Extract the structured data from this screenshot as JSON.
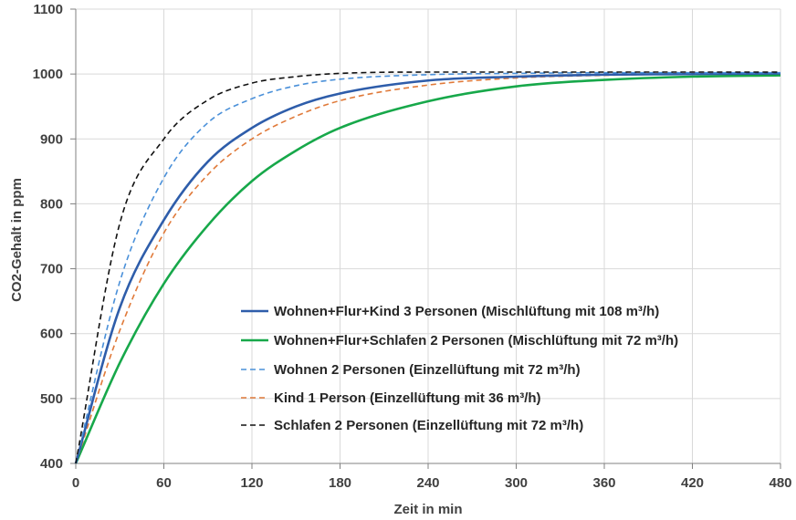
{
  "chart_data": {
    "type": "line",
    "title": "",
    "xlabel": "Zeit in min",
    "ylabel": "CO2-Gehalt in ppm",
    "xlim": [
      0,
      480
    ],
    "ylim": [
      400,
      1100
    ],
    "xticks": [
      0,
      60,
      120,
      180,
      240,
      300,
      360,
      420,
      480
    ],
    "yticks": [
      400,
      500,
      600,
      700,
      800,
      900,
      1000,
      1100
    ],
    "xtick_labels": [
      "0",
      "60",
      "120",
      "180",
      "240",
      "300",
      "360",
      "420",
      "480"
    ],
    "ytick_labels": [
      "400",
      "500",
      "600",
      "700",
      "800",
      "900",
      "1000",
      "1100"
    ],
    "grid": "vertical and horizontal",
    "legend_position": "lower-right",
    "series": [
      {
        "name": "Wohnen+Flur+Kind 3 Personen (Mischlüftung mit 108 m³/h)",
        "color": "#2e5daa",
        "style": "solid",
        "x": [
          0,
          30,
          60,
          90,
          120,
          150,
          180,
          240,
          300,
          360,
          420,
          480
        ],
        "values": [
          400,
          640,
          775,
          865,
          917,
          950,
          970,
          990,
          996,
          999,
          1000,
          1001
        ]
      },
      {
        "name": "Wohnen+Flur+Schlafen 2 Personen (Mischlüftung mit 72 m³/h)",
        "color": "#17a84a",
        "style": "solid",
        "x": [
          0,
          30,
          60,
          90,
          120,
          150,
          180,
          240,
          300,
          360,
          420,
          480
        ],
        "values": [
          400,
          555,
          677,
          767,
          835,
          882,
          917,
          958,
          981,
          991,
          996,
          998
        ]
      },
      {
        "name": "Wohnen 2 Personen (Einzellüftung mit 72 m³/h)",
        "color": "#4a90d9",
        "style": "dashed",
        "x": [
          0,
          30,
          60,
          90,
          120,
          150,
          180,
          240,
          300,
          360,
          420,
          480
        ],
        "values": [
          400,
          680,
          840,
          925,
          962,
          982,
          992,
          999,
          1001,
          1002,
          1002,
          1002
        ]
      },
      {
        "name": "Kind 1 Person (Einzellüftung mit 36 m³/h)",
        "color": "#e07a3a",
        "style": "dashed",
        "x": [
          0,
          30,
          60,
          90,
          120,
          150,
          180,
          240,
          300,
          360,
          420,
          480
        ],
        "values": [
          400,
          605,
          755,
          845,
          900,
          935,
          959,
          983,
          994,
          998,
          1000,
          1001
        ]
      },
      {
        "name": "Schlafen 2 Personen (Einzellüftung mit 72 m³/h)",
        "color": "#111111",
        "style": "dashed",
        "x": [
          0,
          30,
          60,
          90,
          120,
          150,
          180,
          240,
          300,
          360,
          420,
          480
        ],
        "values": [
          400,
          770,
          900,
          960,
          986,
          996,
          1001,
          1003,
          1003,
          1003,
          1003,
          1003
        ]
      }
    ]
  }
}
